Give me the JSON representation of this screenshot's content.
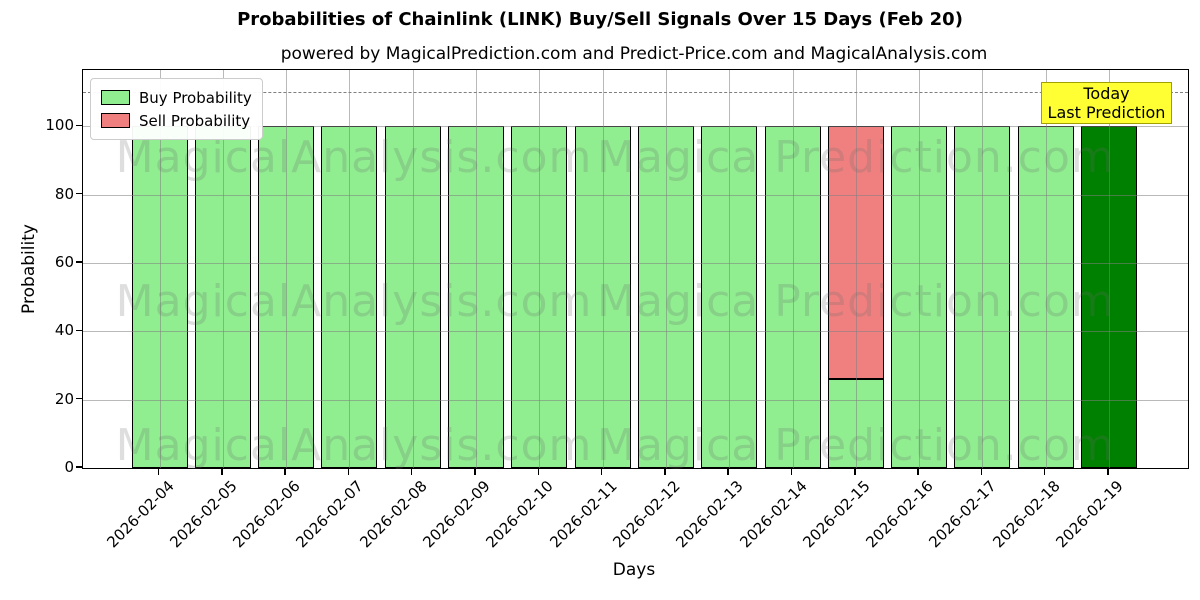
{
  "chart_data": {
    "type": "bar",
    "stacked": true,
    "title": "Probabilities of Chainlink (LINK) Buy/Sell Signals Over 15 Days (Feb 20)",
    "subtitle": "powered by MagicalPrediction.com and Predict-Price.com and MagicalAnalysis.com",
    "xlabel": "Days",
    "ylabel": "Probability",
    "categories": [
      "2026-02-04",
      "2026-02-05",
      "2026-02-06",
      "2026-02-07",
      "2026-02-08",
      "2026-02-09",
      "2026-02-10",
      "2026-02-11",
      "2026-02-12",
      "2026-02-13",
      "2026-02-14",
      "2026-02-15",
      "2026-02-16",
      "2026-02-17",
      "2026-02-18",
      "2026-02-19"
    ],
    "series": [
      {
        "name": "Buy Probability",
        "color": "#90EE90",
        "values": [
          100,
          100,
          100,
          100,
          100,
          100,
          100,
          100,
          100,
          100,
          100,
          26,
          100,
          100,
          100,
          100
        ]
      },
      {
        "name": "Sell Probability",
        "color": "#F08080",
        "values": [
          0,
          0,
          0,
          0,
          0,
          0,
          0,
          0,
          0,
          0,
          0,
          74,
          0,
          0,
          0,
          0
        ]
      }
    ],
    "today_index": 15,
    "today_color": "#008000",
    "bar_edge_color": "#000000",
    "yticks": [
      0,
      20,
      40,
      60,
      80,
      100
    ],
    "ylim": [
      0,
      116.5
    ],
    "dashed_line_y": 110,
    "grid": true,
    "legend_position": "upper-left"
  },
  "legend": {
    "items": [
      {
        "label": "Buy Probability",
        "color": "#90EE90"
      },
      {
        "label": "Sell Probability",
        "color": "#F08080"
      }
    ]
  },
  "annotation": {
    "line1": "Today",
    "line2": "Last Prediction",
    "bg_color": "#FFFF33",
    "border_color": "#A0A000"
  },
  "watermarks": {
    "left": "MagicalAnalysis.com",
    "right": "Magica Prediction.com"
  }
}
